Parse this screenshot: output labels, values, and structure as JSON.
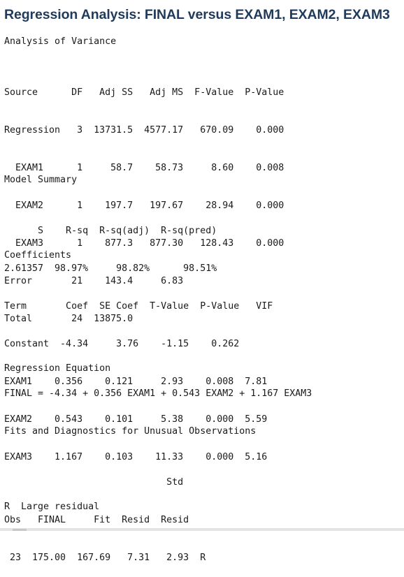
{
  "title": "Regression Analysis: FINAL versus EXAM1, EXAM2, EXAM3",
  "anova": {
    "heading": "Analysis of Variance",
    "rows": [
      "Source      DF   Adj SS   Adj MS  F-Value  P-Value",
      "Regression   3  13731.5  4577.17   670.09    0.000",
      "  EXAM1      1     58.7    58.73     8.60    0.008",
      "  EXAM2      1    197.7   197.67    28.94    0.000",
      "  EXAM3      1    877.3   877.30   128.43    0.000",
      "Error       21    143.4     6.83",
      "Total       24  13875.0"
    ]
  },
  "model_summary": {
    "heading": "Model Summary",
    "rows": [
      "      S    R-sq  R-sq(adj)  R-sq(pred)",
      "2.61357  98.97%     98.82%      98.51%"
    ]
  },
  "coefficients": {
    "heading": "Coefficients",
    "rows": [
      "Term       Coef  SE Coef  T-Value  P-Value   VIF",
      "Constant  -4.34     3.76    -1.15    0.262",
      "EXAM1    0.356    0.121     2.93    0.008  7.81",
      "EXAM2    0.543    0.101     5.38    0.000  5.59",
      "EXAM3    1.167    0.103    11.33    0.000  5.16"
    ]
  },
  "regression_equation": {
    "heading": "Regression Equation",
    "equation": "FINAL = -4.34 + 0.356 EXAM1 + 0.543 EXAM2 + 1.167 EXAM3"
  },
  "unusual": {
    "heading": "Fits and Diagnostics for Unusual Observations",
    "rows": [
      "                             Std",
      "Obs   FINAL     Fit  Resid  Resid",
      " 23  175.00  167.69   7.31   2.93  R"
    ],
    "note": "R  Large residual"
  }
}
